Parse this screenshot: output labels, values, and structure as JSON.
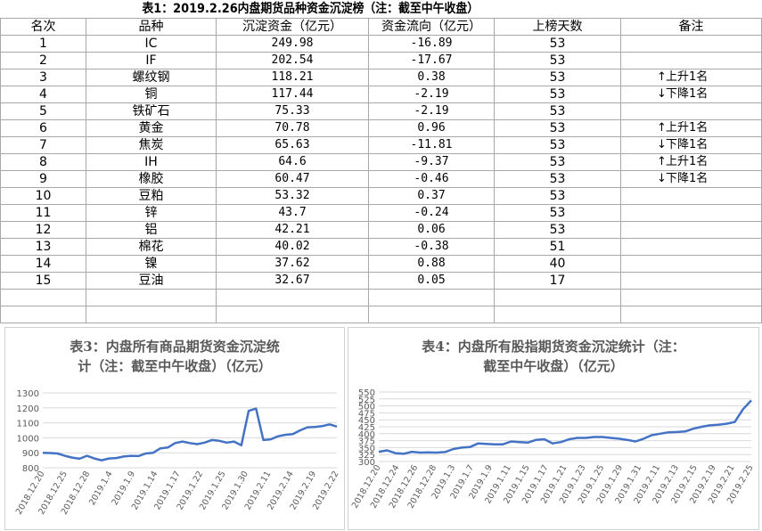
{
  "title": "表1：2019.2.26内盘期货品种资金沉淀榜（注：截至中午收盘）",
  "headers": [
    "名次",
    "品种",
    "沉淀资金（亿元）",
    "资金流向（亿元）",
    "上榜天数",
    "备注"
  ],
  "rows": [
    {
      "rank": "1",
      "name": "IC",
      "fund": "249.98",
      "flow": "-16.89",
      "days": "53",
      "note": ""
    },
    {
      "rank": "2",
      "name": "IF",
      "fund": "202.54",
      "flow": "-17.67",
      "days": "53",
      "note": ""
    },
    {
      "rank": "3",
      "name": "螺纹钢",
      "fund": "118.21",
      "flow": "0.38",
      "days": "53",
      "note": "上升1名",
      "dir": "up"
    },
    {
      "rank": "4",
      "name": "铜",
      "fund": "117.44",
      "flow": "-2.19",
      "days": "53",
      "note": "下降1名",
      "dir": "down"
    },
    {
      "rank": "5",
      "name": "铁矿石",
      "fund": "75.33",
      "flow": "-2.19",
      "days": "53",
      "note": ""
    },
    {
      "rank": "6",
      "name": "黄金",
      "fund": "70.78",
      "flow": "0.96",
      "days": "53",
      "note": "上升1名",
      "dir": "up"
    },
    {
      "rank": "7",
      "name": "焦炭",
      "fund": "65.63",
      "flow": "-11.81",
      "days": "53",
      "note": "下降1名",
      "dir": "down"
    },
    {
      "rank": "8",
      "name": "IH",
      "fund": "64.6",
      "flow": "-9.37",
      "days": "53",
      "note": "上升1名",
      "dir": "up"
    },
    {
      "rank": "9",
      "name": "橡胶",
      "fund": "60.47",
      "flow": "-0.46",
      "days": "53",
      "note": "下降1名",
      "dir": "down"
    },
    {
      "rank": "10",
      "name": "豆粕",
      "fund": "53.32",
      "flow": "0.37",
      "days": "53",
      "note": ""
    },
    {
      "rank": "11",
      "name": "锌",
      "fund": "43.7",
      "flow": "-0.24",
      "days": "53",
      "note": ""
    },
    {
      "rank": "12",
      "name": "铝",
      "fund": "42.21",
      "flow": "0.06",
      "days": "53",
      "note": ""
    },
    {
      "rank": "13",
      "name": "棉花",
      "fund": "40.02",
      "flow": "-0.38",
      "days": "51",
      "note": ""
    },
    {
      "rank": "14",
      "name": "镍",
      "fund": "37.62",
      "flow": "0.88",
      "days": "40",
      "note": ""
    },
    {
      "rank": "15",
      "name": "豆油",
      "fund": "32.67",
      "flow": "0.05",
      "days": "17",
      "note": ""
    }
  ],
  "colors": {
    "line": "#4472c4",
    "axis_text": "#595959",
    "grid": "#d9d9d9"
  },
  "chart_data": [
    {
      "type": "line",
      "title": "表3：内盘所有商品期货资金沉淀统计（注：截至中午收盘）（亿元）",
      "title_lines": [
        "表3：内盘所有商品期货资金沉淀统",
        "计（注：截至中午收盘）（亿元）"
      ],
      "ylim": [
        800,
        1300
      ],
      "yticks": [
        800,
        900,
        1000,
        1100,
        1200,
        1300
      ],
      "xticklabels": [
        "2018.12.20",
        "2018.12.25",
        "2018.12.28",
        "2019.1.4",
        "2019.1.9",
        "2019.1.14",
        "2019.1.17",
        "2019.1.22",
        "2019.1.25",
        "2019.1.30",
        "2019.2.11",
        "2019.2.14",
        "2019.2.19",
        "2019.2.22"
      ],
      "values": [
        900,
        898,
        895,
        880,
        868,
        860,
        880,
        862,
        850,
        862,
        865,
        875,
        880,
        878,
        895,
        900,
        930,
        935,
        965,
        975,
        965,
        958,
        968,
        985,
        980,
        968,
        975,
        950,
        1180,
        1195,
        985,
        990,
        1010,
        1020,
        1025,
        1050,
        1070,
        1072,
        1078,
        1090,
        1075
      ]
    },
    {
      "type": "line",
      "title": "表4：内盘所有股指期货资金沉淀统计（注：截至中午收盘）（亿元）",
      "title_lines": [
        "表4：内盘所有股指期货资金沉淀统计（注：",
        "截至中午收盘）（亿元）"
      ],
      "ylim": [
        300,
        550
      ],
      "yticks": [
        300,
        325,
        350,
        375,
        400,
        425,
        450,
        475,
        500,
        525,
        550
      ],
      "xticklabels": [
        "2018.12.20",
        "2018.12.24",
        "2018.12.26",
        "2018.12.28",
        "2019.1.3",
        "2019.1.7",
        "2019.1.9",
        "2019.1.11",
        "2019.1.15",
        "2019.1.17",
        "2019.1.21",
        "2019.1.23",
        "2019.1.25",
        "2019.1.29",
        "2019.1.31",
        "2019.2.11",
        "2019.2.13",
        "2019.2.15",
        "2019.2.19",
        "2019.2.21",
        "2019.2.25"
      ],
      "values": [
        335,
        340,
        330,
        328,
        335,
        332,
        333,
        332,
        334,
        345,
        350,
        352,
        365,
        363,
        362,
        362,
        372,
        370,
        368,
        378,
        380,
        365,
        370,
        380,
        385,
        385,
        388,
        388,
        385,
        382,
        378,
        372,
        382,
        395,
        400,
        405,
        406,
        408,
        418,
        425,
        430,
        432,
        436,
        442,
        488,
        520
      ]
    }
  ]
}
